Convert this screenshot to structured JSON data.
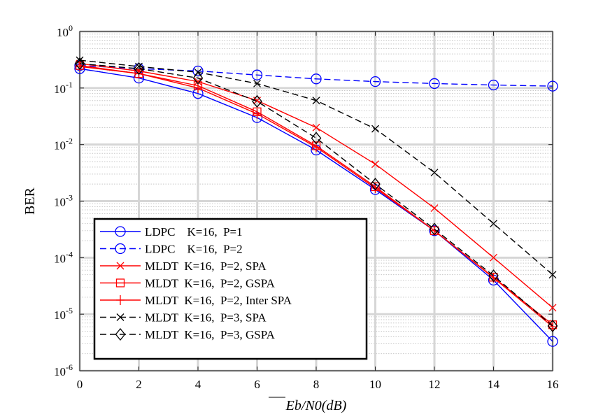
{
  "chart_data": {
    "type": "line",
    "title": "",
    "xlabel": "Eb/N0(dB)",
    "ylabel": "BER",
    "xlim": [
      0,
      16
    ],
    "ylim": [
      1e-06,
      1
    ],
    "yscale": "log",
    "grid": true,
    "legend_position": "bottom-left",
    "x_ticks": [
      {
        "value": 0,
        "label": "0"
      },
      {
        "value": 2,
        "label": "2"
      },
      {
        "value": 4,
        "label": "4"
      },
      {
        "value": 6,
        "label": "6"
      },
      {
        "value": 8,
        "label": "8"
      },
      {
        "value": 10,
        "label": "10"
      },
      {
        "value": 12,
        "label": "12"
      },
      {
        "value": 14,
        "label": "14"
      },
      {
        "value": 16,
        "label": "16"
      }
    ],
    "y_ticks": [
      {
        "exp": 0,
        "base": "10",
        "sup": "0"
      },
      {
        "exp": -1,
        "base": "10",
        "sup": "-1"
      },
      {
        "exp": -2,
        "base": "10",
        "sup": "-2"
      },
      {
        "exp": -3,
        "base": "10",
        "sup": "-3"
      },
      {
        "exp": -4,
        "base": "10",
        "sup": "-4"
      },
      {
        "exp": -5,
        "base": "10",
        "sup": "-5"
      },
      {
        "exp": -6,
        "base": "10",
        "sup": "-6"
      }
    ],
    "x": [
      0,
      2,
      4,
      6,
      8,
      10,
      12,
      14,
      16
    ],
    "series": [
      {
        "name": "LDPC    K=16,  P=1",
        "color": "#0000ff",
        "dash": "solid",
        "marker": "circle",
        "values": [
          0.22,
          0.15,
          0.08,
          0.03,
          0.008,
          0.0016,
          0.0003,
          4e-05,
          3.3e-06
        ]
      },
      {
        "name": "LDPC    K=16,  P=2",
        "color": "#0000ff",
        "dash": "dashed",
        "marker": "circle",
        "values": [
          0.25,
          0.22,
          0.2,
          0.17,
          0.145,
          0.13,
          0.12,
          0.113,
          0.108
        ]
      },
      {
        "name": "MLDT  K=16,  P=2, SPA",
        "color": "#ff0000",
        "dash": "solid",
        "marker": "x",
        "values": [
          0.27,
          0.2,
          0.13,
          0.06,
          0.02,
          0.0045,
          0.00075,
          0.0001,
          1.3e-05
        ]
      },
      {
        "name": "MLDT  K=16,  P=2, GSPA",
        "color": "#ff0000",
        "dash": "solid",
        "marker": "square",
        "values": [
          0.25,
          0.18,
          0.11,
          0.038,
          0.0095,
          0.0018,
          0.0003,
          4.5e-05,
          6.5e-06
        ]
      },
      {
        "name": "MLDT  K=16,  P=2, Inter SPA",
        "color": "#ff0000",
        "dash": "solid",
        "marker": "plus",
        "values": [
          0.24,
          0.18,
          0.1,
          0.035,
          0.009,
          0.0017,
          0.0003,
          4.4e-05,
          6e-06
        ]
      },
      {
        "name": "MLDT  K=16,  P=3, SPA",
        "color": "#000000",
        "dash": "dashed",
        "marker": "x",
        "values": [
          0.31,
          0.24,
          0.19,
          0.12,
          0.06,
          0.019,
          0.0032,
          0.0004,
          5e-05
        ]
      },
      {
        "name": "MLDT  K=16,  P=3, GSPA",
        "color": "#000000",
        "dash": "dashed",
        "marker": "diamond",
        "values": [
          0.27,
          0.22,
          0.15,
          0.058,
          0.013,
          0.002,
          0.00032,
          4.8e-05,
          6.2e-06
        ]
      }
    ]
  }
}
